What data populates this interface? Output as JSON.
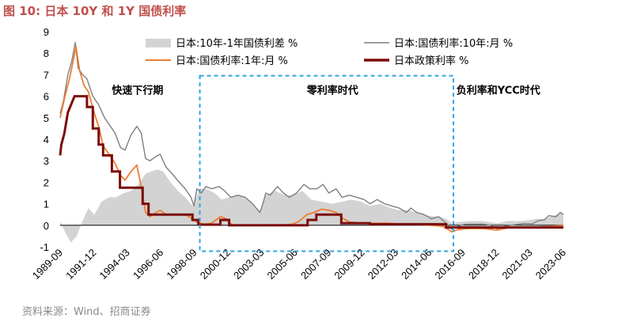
{
  "figure_title": "图 10:  日本 10Y 和 1Y 国债利率",
  "source": "资料来源：Wind、招商证券",
  "colors": {
    "title": "#c0504d",
    "spread_fill": "#d3d3d3",
    "yield_10y": "#7f7f7f",
    "yield_1y": "#ed7d31",
    "policy_rate": "#7b0c0c",
    "highlight_box": "#2ea6e0"
  },
  "chart_data": {
    "type": "line",
    "ylim": [
      -1,
      9
    ],
    "y_ticks": [
      -1,
      0,
      1,
      2,
      3,
      4,
      5,
      6,
      7,
      8,
      9
    ],
    "x_tick_labels": [
      "1989-09",
      "1991-12",
      "1994-03",
      "1996-06",
      "1998-09",
      "2000-12",
      "2003-03",
      "2005-06",
      "2007-09",
      "2009-12",
      "2012-03",
      "2014-06",
      "2016-09",
      "2018-12",
      "2021-03",
      "2023-06"
    ],
    "x_range": [
      1989.67,
      2024.0
    ],
    "grid": false,
    "legend_position": "top",
    "legend": [
      {
        "label": "日本:10年-1年国债利差 %",
        "series": "spread",
        "style": "area"
      },
      {
        "label": "日本:国债利率:10年:月 %",
        "series": "yield_10y",
        "style": "line"
      },
      {
        "label": "日本:国债利率:1年:月 %",
        "series": "yield_1y",
        "style": "line"
      },
      {
        "label": "日本政策利率 %",
        "series": "policy_rate",
        "style": "thick-line"
      }
    ],
    "annotations": [
      {
        "text": "快速下行期",
        "x": 1993.2,
        "y": 6.3
      },
      {
        "text": "零利率时代",
        "x": 2006.5,
        "y": 6.3
      },
      {
        "text": "负利率和YCC时代",
        "x": 2016.7,
        "y": 6.3
      }
    ],
    "highlight_region": {
      "x": [
        1999.2,
        2016.5
      ],
      "y": [
        -1.2,
        6.95
      ]
    },
    "series": {
      "yield_10y": [
        [
          1989.67,
          5.2
        ],
        [
          1989.9,
          5.8
        ],
        [
          1990.2,
          7.0
        ],
        [
          1990.45,
          7.6
        ],
        [
          1990.7,
          8.5
        ],
        [
          1990.9,
          7.3
        ],
        [
          1991.2,
          7.0
        ],
        [
          1991.5,
          6.8
        ],
        [
          1991.9,
          6.0
        ],
        [
          1992.3,
          5.6
        ],
        [
          1992.7,
          5.0
        ],
        [
          1993.0,
          4.7
        ],
        [
          1993.4,
          4.3
        ],
        [
          1993.8,
          3.6
        ],
        [
          1994.1,
          3.5
        ],
        [
          1994.5,
          4.2
        ],
        [
          1994.9,
          4.6
        ],
        [
          1995.2,
          4.3
        ],
        [
          1995.5,
          3.1
        ],
        [
          1995.8,
          3.0
        ],
        [
          1996.2,
          3.2
        ],
        [
          1996.5,
          3.3
        ],
        [
          1996.9,
          2.7
        ],
        [
          1997.3,
          2.4
        ],
        [
          1997.8,
          2.0
        ],
        [
          1998.2,
          1.7
        ],
        [
          1998.6,
          1.3
        ],
        [
          1998.8,
          0.9
        ],
        [
          1999.0,
          1.7
        ],
        [
          1999.3,
          1.5
        ],
        [
          1999.6,
          1.8
        ],
        [
          2000.0,
          1.7
        ],
        [
          2000.5,
          1.8
        ],
        [
          2000.9,
          1.6
        ],
        [
          2001.3,
          1.3
        ],
        [
          2001.8,
          1.4
        ],
        [
          2002.3,
          1.3
        ],
        [
          2002.8,
          1.0
        ],
        [
          2003.3,
          0.6
        ],
        [
          2003.5,
          1.0
        ],
        [
          2003.7,
          1.5
        ],
        [
          2004.0,
          1.4
        ],
        [
          2004.5,
          1.8
        ],
        [
          2004.9,
          1.5
        ],
        [
          2005.3,
          1.3
        ],
        [
          2005.8,
          1.5
        ],
        [
          2006.3,
          1.9
        ],
        [
          2006.7,
          1.7
        ],
        [
          2007.2,
          1.7
        ],
        [
          2007.6,
          1.9
        ],
        [
          2008.0,
          1.5
        ],
        [
          2008.5,
          1.7
        ],
        [
          2008.9,
          1.3
        ],
        [
          2009.4,
          1.4
        ],
        [
          2009.9,
          1.3
        ],
        [
          2010.4,
          1.2
        ],
        [
          2010.8,
          1.0
        ],
        [
          2011.3,
          1.2
        ],
        [
          2011.8,
          1.0
        ],
        [
          2012.3,
          0.9
        ],
        [
          2012.8,
          0.8
        ],
        [
          2013.3,
          0.6
        ],
        [
          2013.6,
          0.8
        ],
        [
          2014.0,
          0.6
        ],
        [
          2014.5,
          0.5
        ],
        [
          2015.0,
          0.3
        ],
        [
          2015.5,
          0.4
        ],
        [
          2016.0,
          0.1
        ],
        [
          2016.4,
          -0.2
        ],
        [
          2016.8,
          -0.05
        ],
        [
          2017.3,
          0.05
        ],
        [
          2017.8,
          0.05
        ],
        [
          2018.5,
          0.06
        ],
        [
          2019.0,
          0.0
        ],
        [
          2019.6,
          -0.2
        ],
        [
          2020.0,
          -0.05
        ],
        [
          2020.6,
          0.02
        ],
        [
          2021.3,
          0.08
        ],
        [
          2021.9,
          0.07
        ],
        [
          2022.3,
          0.22
        ],
        [
          2022.7,
          0.25
        ],
        [
          2023.0,
          0.45
        ],
        [
          2023.5,
          0.4
        ],
        [
          2023.8,
          0.6
        ],
        [
          2024.0,
          0.5
        ]
      ],
      "yield_1y": [
        [
          1989.67,
          5.0
        ],
        [
          1990.0,
          6.0
        ],
        [
          1990.3,
          6.8
        ],
        [
          1990.55,
          7.6
        ],
        [
          1990.75,
          8.3
        ],
        [
          1991.0,
          7.2
        ],
        [
          1991.3,
          6.5
        ],
        [
          1991.6,
          6.2
        ],
        [
          1992.0,
          5.2
        ],
        [
          1992.3,
          4.6
        ],
        [
          1992.6,
          3.7
        ],
        [
          1993.0,
          3.3
        ],
        [
          1993.4,
          2.9
        ],
        [
          1993.8,
          2.3
        ],
        [
          1994.1,
          2.1
        ],
        [
          1994.5,
          2.5
        ],
        [
          1994.9,
          2.8
        ],
        [
          1995.2,
          1.8
        ],
        [
          1995.5,
          0.6
        ],
        [
          1995.8,
          0.4
        ],
        [
          1996.2,
          0.6
        ],
        [
          1996.5,
          0.7
        ],
        [
          1996.9,
          0.5
        ],
        [
          1997.3,
          0.5
        ],
        [
          1997.8,
          0.5
        ],
        [
          1998.2,
          0.5
        ],
        [
          1998.6,
          0.35
        ],
        [
          1999.0,
          0.15
        ],
        [
          1999.5,
          0.05
        ],
        [
          2000.0,
          0.1
        ],
        [
          2000.6,
          0.4
        ],
        [
          2001.0,
          0.3
        ],
        [
          2001.4,
          0.02
        ],
        [
          2002.0,
          0.01
        ],
        [
          2003.0,
          0.01
        ],
        [
          2004.0,
          0.02
        ],
        [
          2005.0,
          0.02
        ],
        [
          2005.5,
          0.05
        ],
        [
          2006.0,
          0.2
        ],
        [
          2006.5,
          0.5
        ],
        [
          2007.0,
          0.6
        ],
        [
          2007.5,
          0.75
        ],
        [
          2008.0,
          0.7
        ],
        [
          2008.5,
          0.6
        ],
        [
          2008.9,
          0.35
        ],
        [
          2009.4,
          0.15
        ],
        [
          2010.0,
          0.12
        ],
        [
          2011.0,
          0.1
        ],
        [
          2012.0,
          0.1
        ],
        [
          2013.0,
          0.05
        ],
        [
          2014.0,
          0.04
        ],
        [
          2015.0,
          0.0
        ],
        [
          2015.8,
          -0.05
        ],
        [
          2016.4,
          -0.3
        ],
        [
          2016.8,
          -0.2
        ],
        [
          2017.5,
          -0.15
        ],
        [
          2018.5,
          -0.15
        ],
        [
          2019.5,
          -0.22
        ],
        [
          2020.2,
          -0.12
        ],
        [
          2021.0,
          -0.12
        ],
        [
          2022.0,
          -0.08
        ],
        [
          2023.0,
          -0.05
        ],
        [
          2024.0,
          -0.02
        ]
      ],
      "policy_rate": [
        [
          1989.67,
          3.25
        ],
        [
          1989.75,
          3.75
        ],
        [
          1989.95,
          4.25
        ],
        [
          1990.2,
          5.25
        ],
        [
          1990.65,
          6.0
        ],
        [
          1991.5,
          6.0
        ],
        [
          1991.5,
          5.5
        ],
        [
          1991.9,
          5.5
        ],
        [
          1991.9,
          4.5
        ],
        [
          1992.3,
          4.5
        ],
        [
          1992.3,
          3.75
        ],
        [
          1992.6,
          3.75
        ],
        [
          1992.6,
          3.25
        ],
        [
          1993.2,
          3.25
        ],
        [
          1993.2,
          2.5
        ],
        [
          1993.75,
          2.5
        ],
        [
          1993.75,
          1.75
        ],
        [
          1995.3,
          1.75
        ],
        [
          1995.3,
          1.0
        ],
        [
          1995.7,
          1.0
        ],
        [
          1995.7,
          0.5
        ],
        [
          1998.7,
          0.5
        ],
        [
          1998.7,
          0.25
        ],
        [
          1999.1,
          0.25
        ],
        [
          1999.1,
          0.03
        ],
        [
          2000.6,
          0.03
        ],
        [
          2000.6,
          0.25
        ],
        [
          2001.2,
          0.25
        ],
        [
          2001.2,
          0.0
        ],
        [
          2006.55,
          0.0
        ],
        [
          2006.55,
          0.25
        ],
        [
          2007.15,
          0.25
        ],
        [
          2007.15,
          0.5
        ],
        [
          2008.85,
          0.5
        ],
        [
          2008.85,
          0.1
        ],
        [
          2010.8,
          0.1
        ],
        [
          2010.8,
          0.05
        ],
        [
          2016.0,
          0.05
        ],
        [
          2016.0,
          -0.1
        ],
        [
          2024.0,
          -0.1
        ]
      ],
      "spread": [
        [
          1989.67,
          0.2
        ],
        [
          1990.0,
          -0.3
        ],
        [
          1990.4,
          -0.8
        ],
        [
          1990.8,
          -0.5
        ],
        [
          1991.2,
          0.2
        ],
        [
          1991.6,
          0.8
        ],
        [
          1992.0,
          0.5
        ],
        [
          1992.5,
          1.1
        ],
        [
          1993.0,
          1.3
        ],
        [
          1993.5,
          1.3
        ],
        [
          1994.0,
          1.5
        ],
        [
          1994.5,
          1.6
        ],
        [
          1995.0,
          1.9
        ],
        [
          1995.5,
          2.4
        ],
        [
          1995.9,
          2.5
        ],
        [
          1996.3,
          2.6
        ],
        [
          1996.7,
          2.5
        ],
        [
          1997.2,
          2.0
        ],
        [
          1997.7,
          1.6
        ],
        [
          1998.2,
          1.3
        ],
        [
          1998.7,
          0.9
        ],
        [
          1999.2,
          1.7
        ],
        [
          1999.6,
          1.7
        ],
        [
          2000.2,
          1.5
        ],
        [
          2000.7,
          1.2
        ],
        [
          2001.2,
          1.3
        ],
        [
          2001.8,
          1.4
        ],
        [
          2002.5,
          1.2
        ],
        [
          2003.3,
          0.6
        ],
        [
          2003.7,
          1.4
        ],
        [
          2004.3,
          1.6
        ],
        [
          2005.0,
          1.4
        ],
        [
          2005.6,
          1.4
        ],
        [
          2006.2,
          1.6
        ],
        [
          2006.8,
          1.2
        ],
        [
          2007.5,
          1.1
        ],
        [
          2008.2,
          1.0
        ],
        [
          2008.9,
          1.1
        ],
        [
          2009.5,
          1.2
        ],
        [
          2010.2,
          1.1
        ],
        [
          2010.8,
          0.9
        ],
        [
          2011.5,
          1.0
        ],
        [
          2012.2,
          0.8
        ],
        [
          2012.8,
          0.7
        ],
        [
          2013.5,
          0.7
        ],
        [
          2014.2,
          0.55
        ],
        [
          2014.8,
          0.45
        ],
        [
          2015.5,
          0.4
        ],
        [
          2016.0,
          0.3
        ],
        [
          2016.4,
          0.1
        ],
        [
          2016.8,
          0.15
        ],
        [
          2017.5,
          0.2
        ],
        [
          2018.5,
          0.2
        ],
        [
          2019.5,
          0.1
        ],
        [
          2020.2,
          0.2
        ],
        [
          2021.2,
          0.2
        ],
        [
          2022.2,
          0.3
        ],
        [
          2022.8,
          0.3
        ],
        [
          2023.3,
          0.45
        ],
        [
          2023.8,
          0.55
        ],
        [
          2024.0,
          0.5
        ]
      ]
    }
  }
}
